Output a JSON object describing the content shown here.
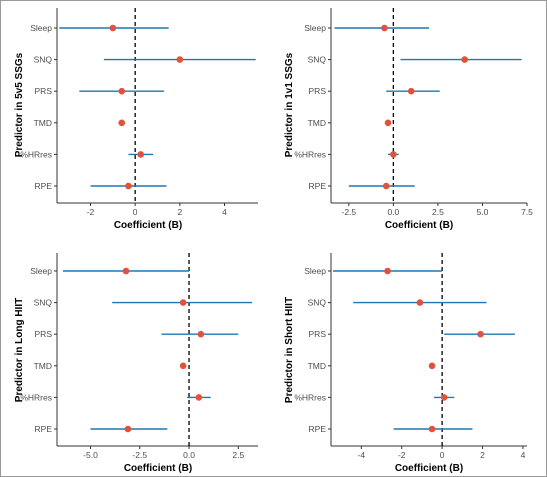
{
  "colors": {
    "ci": "#1f77b4",
    "point": "#e1523d"
  },
  "chart_data": [
    {
      "type": "forest",
      "ylabel": "Predictor in 5v5 SSGs",
      "xlabel": "Coefficient (B)",
      "xlim": [
        -3.5,
        5.5
      ],
      "xticks": [
        -2,
        0,
        2,
        4
      ],
      "xtick_labels": [
        "-2",
        "0",
        "2",
        "4"
      ],
      "predictors": [
        "Sleep",
        "SNQ",
        "PRS",
        "TMD",
        "%HRres",
        "RPE"
      ],
      "estimates": [
        -1.0,
        2.0,
        -0.6,
        -0.6,
        0.25,
        -0.3
      ],
      "ci_low": [
        -3.4,
        -1.4,
        -2.5,
        -0.75,
        -0.3,
        -2.0
      ],
      "ci_high": [
        1.5,
        5.4,
        1.3,
        -0.45,
        0.8,
        1.4
      ]
    },
    {
      "type": "forest",
      "ylabel": "Predictor in 1v1 SSGs",
      "xlabel": "Coefficient (B)",
      "xlim": [
        -3.5,
        7.5
      ],
      "xticks": [
        -2.5,
        0,
        2.5,
        5,
        7.5
      ],
      "xtick_labels": [
        "-2.5",
        "0.0",
        "2.5",
        "5.0",
        "7.5"
      ],
      "predictors": [
        "Sleep",
        "SNQ",
        "PRS",
        "TMD",
        "%HRres",
        "RPE"
      ],
      "estimates": [
        -0.5,
        4.0,
        1.0,
        -0.3,
        0.0,
        -0.4
      ],
      "ci_low": [
        -3.3,
        0.4,
        -0.4,
        -0.45,
        -0.3,
        -2.5
      ],
      "ci_high": [
        2.0,
        7.2,
        2.6,
        -0.15,
        0.3,
        1.2
      ]
    },
    {
      "type": "forest",
      "ylabel": "Predictor in Long HIIT",
      "xlabel": "Coefficient (B)",
      "xlim": [
        -6.7,
        3.5
      ],
      "xticks": [
        -5,
        -2.5,
        0,
        2.5
      ],
      "xtick_labels": [
        "-5.0",
        "-2.5",
        "0.0",
        "2.5"
      ],
      "predictors": [
        "Sleep",
        "SNQ",
        "PRS",
        "TMD",
        "%HRres",
        "RPE"
      ],
      "estimates": [
        -3.2,
        -0.3,
        0.6,
        -0.3,
        0.5,
        -3.1
      ],
      "ci_low": [
        -6.4,
        -3.9,
        -1.4,
        -0.45,
        -0.1,
        -5.0
      ],
      "ci_high": [
        0.0,
        3.2,
        2.5,
        -0.15,
        1.1,
        -1.1
      ]
    },
    {
      "type": "forest",
      "ylabel": "Predictor in Short HIIT",
      "xlabel": "Coefficient (B)",
      "xlim": [
        -5.5,
        4.2
      ],
      "xticks": [
        -4,
        -2,
        0,
        2,
        4
      ],
      "xtick_labels": [
        "-4",
        "-2",
        "0",
        "2",
        "4"
      ],
      "predictors": [
        "Sleep",
        "SNQ",
        "PRS",
        "TMD",
        "%HRres",
        "RPE"
      ],
      "estimates": [
        -2.7,
        -1.1,
        1.9,
        -0.5,
        0.1,
        -0.5
      ],
      "ci_low": [
        -5.4,
        -4.4,
        0.1,
        -0.65,
        -0.4,
        -2.4
      ],
      "ci_high": [
        0.0,
        2.2,
        3.6,
        -0.35,
        0.6,
        1.5
      ]
    }
  ]
}
